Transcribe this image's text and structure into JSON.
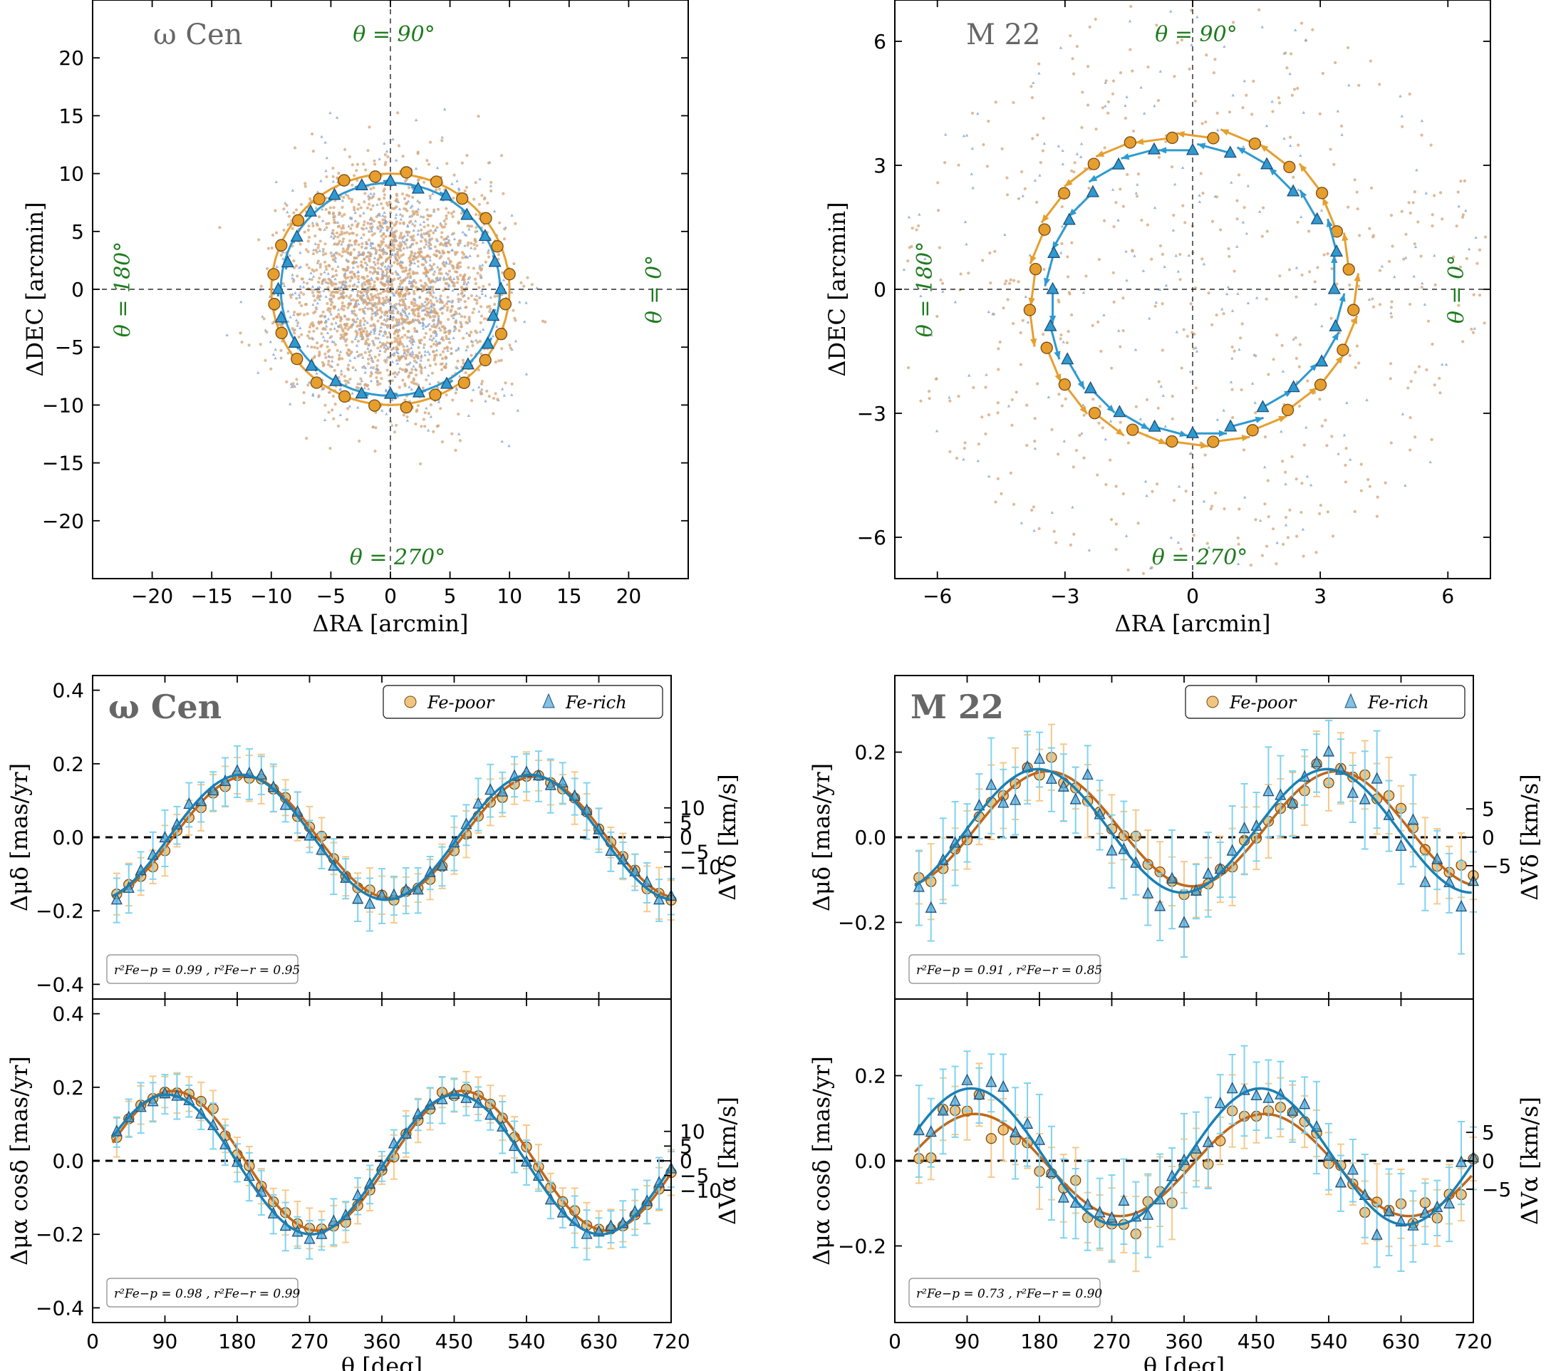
{
  "colors": {
    "fe_poor": "#e69f2e",
    "fe_poor_edge": "#7a4a10",
    "fe_rich": "#2e9ad0",
    "fe_rich_edge": "#1f4e79",
    "fe_poor_err": "#f5c98a",
    "fe_rich_err": "#7fd3f0",
    "angle_label": "#1e7b1e",
    "cluster_label": "#666666",
    "bg_poor": "#d4a373",
    "bg_rich": "#8aa9d6"
  },
  "chart_data": [
    {
      "id": "omega-map",
      "type": "scatter",
      "title": "ω Cen",
      "xlabel": "ΔRA [arcmin]",
      "ylabel": "ΔDEC [arcmin]",
      "xlim": [
        -25,
        25
      ],
      "ylim": [
        -25,
        25
      ],
      "xticks": [
        -20,
        -15,
        -10,
        -5,
        0,
        5,
        10,
        15,
        20
      ],
      "yticks": [
        -20,
        -15,
        -10,
        -5,
        0,
        5,
        10,
        15,
        20
      ],
      "tick_labels_x": [
        "−20",
        "−15",
        "−10",
        "−5",
        "0",
        "5",
        "10",
        "15",
        "20"
      ],
      "tick_labels_y": [
        "−20",
        "−15",
        "−10",
        "−5",
        "0",
        "5",
        "10",
        "15",
        "20"
      ],
      "angle_labels": [
        "θ = 90°",
        "θ = 180°",
        "θ = 0°",
        "θ = 270°"
      ],
      "ring_radius": 10,
      "ring_points": 24,
      "field_radius": 17
    },
    {
      "id": "m22-map",
      "type": "scatter",
      "title": "M 22",
      "xlabel": "ΔRA [arcmin]",
      "ylabel": "ΔDEC [arcmin]",
      "xlim": [
        -7,
        7
      ],
      "ylim": [
        -7,
        7
      ],
      "xticks": [
        -6,
        -3,
        0,
        3,
        6
      ],
      "yticks": [
        -6,
        -3,
        0,
        3,
        6
      ],
      "tick_labels_x": [
        "−6",
        "−3",
        "0",
        "3",
        "6"
      ],
      "tick_labels_y": [
        "−6",
        "−3",
        "0",
        "3",
        "6"
      ],
      "angle_labels": [
        "θ = 90°",
        "θ = 180°",
        "θ = 0°",
        "θ = 270°"
      ],
      "ring_radius": 3.75,
      "ring_points": 24,
      "field_radius": 7
    },
    {
      "id": "omega-mudelta",
      "type": "scatter",
      "title": "ω Cen",
      "ylabel": "Δμδ [mas/yr]",
      "ylabel_right": "ΔVδ [km/s]",
      "xlim": [
        0,
        720
      ],
      "ylim": [
        -0.44,
        0.44
      ],
      "yticks": [
        -0.4,
        -0.2,
        0.0,
        0.2,
        0.4
      ],
      "tick_labels_y": [
        "−0.4",
        "−0.2",
        "0.0",
        "0.2",
        "0.4"
      ],
      "right_ticks": [
        "−10",
        "−5",
        "0",
        "5",
        "10"
      ],
      "right_tick_values": [
        -10,
        -5,
        0,
        5,
        10
      ],
      "right_scale": 0.04,
      "legend": [
        "Fe-poor",
        "Fe-rich"
      ],
      "r2_text": "r²Fe−p = 0.99 ,  r²Fe−r = 0.95",
      "series": [
        {
          "name": "Fe-poor",
          "amplitude": 0.165,
          "phase_deg": 190,
          "offset": 0.0,
          "err": 0.055,
          "noise": 0.012
        },
        {
          "name": "Fe-rich",
          "amplitude": 0.17,
          "phase_deg": 185,
          "offset": 0.0,
          "err": 0.06,
          "noise": 0.018
        }
      ]
    },
    {
      "id": "m22-mudelta",
      "type": "scatter",
      "title": "M 22",
      "ylabel": "Δμδ [mas/yr]",
      "ylabel_right": "ΔVδ [km/s]",
      "xlim": [
        0,
        720
      ],
      "ylim": [
        -0.38,
        0.38
      ],
      "yticks": [
        -0.2,
        0.0,
        0.2
      ],
      "tick_labels_y": [
        "−0.2",
        "0.0",
        "0.2"
      ],
      "right_ticks": [
        "−5",
        "0",
        "5"
      ],
      "right_tick_values": [
        -5,
        0,
        5
      ],
      "right_scale": 0.0667,
      "legend": [
        "Fe-poor",
        "Fe-rich"
      ],
      "r2_text": "r²Fe−p = 0.91 ,  r²Fe−r = 0.85",
      "series": [
        {
          "name": "Fe-poor",
          "amplitude": 0.135,
          "phase_deg": 190,
          "offset": 0.02,
          "err": 0.07,
          "noise": 0.025
        },
        {
          "name": "Fe-rich",
          "amplitude": 0.145,
          "phase_deg": 178,
          "offset": 0.015,
          "err": 0.09,
          "noise": 0.045
        }
      ]
    },
    {
      "id": "omega-mualpha",
      "type": "scatter",
      "ylabel": "Δμα cosδ [mas/yr]",
      "ylabel_right": "ΔVα [km/s]",
      "xlabel": "θ [deg]",
      "xlim": [
        0,
        720
      ],
      "xticks": [
        0,
        90,
        180,
        270,
        360,
        450,
        540,
        630,
        720
      ],
      "tick_labels_x": [
        "0",
        "90",
        "180",
        "270",
        "360",
        "450",
        "540",
        "630",
        "720"
      ],
      "ylim": [
        -0.44,
        0.44
      ],
      "yticks": [
        -0.4,
        -0.2,
        0.0,
        0.2,
        0.4
      ],
      "tick_labels_y": [
        "−0.4",
        "−0.2",
        "0.0",
        "0.2",
        "0.4"
      ],
      "right_ticks": [
        "−10",
        "−5",
        "0",
        "5",
        "10"
      ],
      "right_tick_values": [
        -10,
        -5,
        0,
        5,
        10
      ],
      "right_scale": 0.04,
      "r2_text": "r²Fe−p = 0.98 ,  r²Fe−r = 0.99",
      "series": [
        {
          "name": "Fe-poor",
          "amplitude": 0.19,
          "phase_deg": 100,
          "offset": 0.0,
          "err": 0.05,
          "noise": 0.012
        },
        {
          "name": "Fe-rich",
          "amplitude": 0.19,
          "phase_deg": 92,
          "offset": -0.01,
          "err": 0.055,
          "noise": 0.012
        }
      ]
    },
    {
      "id": "m22-mualpha",
      "type": "scatter",
      "ylabel": "Δμα cosδ [mas/yr]",
      "ylabel_right": "ΔVα [km/s]",
      "xlabel": "θ [deg]",
      "xlim": [
        0,
        720
      ],
      "xticks": [
        0,
        90,
        180,
        270,
        360,
        450,
        540,
        630,
        720
      ],
      "tick_labels_x": [
        "0",
        "90",
        "180",
        "270",
        "360",
        "450",
        "540",
        "630",
        "720"
      ],
      "ylim": [
        -0.38,
        0.38
      ],
      "yticks": [
        -0.2,
        0.0,
        0.2
      ],
      "tick_labels_y": [
        "−0.2",
        "0.0",
        "0.2"
      ],
      "right_ticks": [
        "−5",
        "0",
        "5"
      ],
      "right_tick_values": [
        -5,
        0,
        5
      ],
      "right_scale": 0.0667,
      "r2_text": "r²Fe−p = 0.73 ,  r²Fe−r = 0.90",
      "series": [
        {
          "name": "Fe-poor",
          "amplitude": 0.12,
          "phase_deg": 100,
          "offset": -0.01,
          "err": 0.07,
          "noise": 0.04
        },
        {
          "name": "Fe-rich",
          "amplitude": 0.16,
          "phase_deg": 95,
          "offset": 0.01,
          "err": 0.09,
          "noise": 0.035
        }
      ]
    }
  ]
}
